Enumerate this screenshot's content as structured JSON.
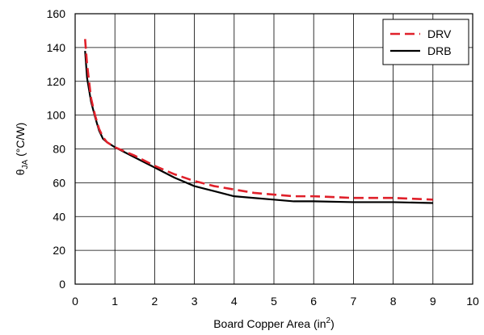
{
  "chart_data": {
    "type": "line",
    "xlabel": "Board Copper Area (in",
    "xlabel_sup": "2",
    "xlabel_end": ")",
    "ylabel_main": "θ",
    "ylabel_sub": "JA",
    "ylabel_rest": " (°C/W)",
    "xlim": [
      0,
      10
    ],
    "ylim": [
      0,
      160
    ],
    "xticks": [
      "0",
      "1",
      "2",
      "3",
      "4",
      "5",
      "6",
      "7",
      "8",
      "9",
      "10"
    ],
    "yticks": [
      "0",
      "20",
      "40",
      "60",
      "80",
      "100",
      "120",
      "140",
      "160"
    ],
    "grid": true,
    "legend_position": "top-right",
    "series": [
      {
        "name": "DRV",
        "color": "#e0202a",
        "style": "dashed",
        "x": [
          0.25,
          0.3,
          0.4,
          0.5,
          0.6,
          0.7,
          0.8,
          1.0,
          1.5,
          2.0,
          2.5,
          3.0,
          3.5,
          4.0,
          4.5,
          5.0,
          5.5,
          6.0,
          7.0,
          8.0,
          9.0
        ],
        "y": [
          145,
          130,
          110,
          100,
          92,
          87,
          84,
          81,
          76,
          70,
          65,
          61,
          58,
          56,
          54,
          53,
          52,
          52,
          51,
          51,
          50
        ]
      },
      {
        "name": "DRB",
        "color": "#000000",
        "style": "solid",
        "x": [
          0.25,
          0.3,
          0.4,
          0.5,
          0.6,
          0.7,
          0.8,
          1.0,
          1.5,
          2.0,
          2.5,
          3.0,
          3.5,
          4.0,
          4.5,
          5.0,
          5.5,
          6.0,
          7.0,
          8.0,
          9.0
        ],
        "y": [
          138,
          122,
          108,
          99,
          91,
          86,
          84,
          81,
          75,
          69,
          63,
          58,
          55,
          52,
          51,
          50,
          49,
          49,
          48.5,
          48.5,
          48
        ]
      }
    ]
  }
}
